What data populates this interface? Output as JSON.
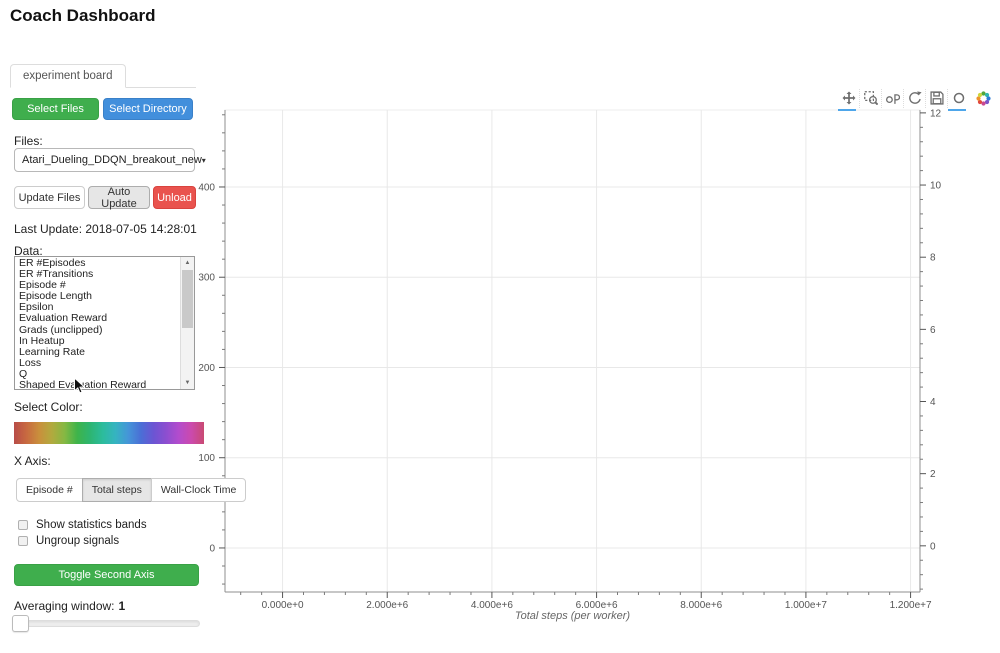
{
  "page": {
    "title": "Coach Dashboard"
  },
  "tabs": [
    {
      "label": "experiment board",
      "active": true
    }
  ],
  "file_buttons": {
    "select_files": "Select Files",
    "select_directory": "Select Directory"
  },
  "files": {
    "label": "Files:",
    "selected": "Atari_Dueling_DDQN_breakout_new"
  },
  "update_buttons": {
    "update_files": "Update Files",
    "auto_update": "Auto Update",
    "unload": "Unload"
  },
  "last_update": "Last Update: 2018-07-05 14:28:01",
  "data_list": {
    "label": "Data:",
    "items": [
      "ER #Episodes",
      "ER #Transitions",
      "Episode #",
      "Episode Length",
      "Epsilon",
      "Evaluation Reward",
      "Grads (unclipped)",
      "In Heatup",
      "Learning Rate",
      "Loss",
      "Q",
      "Shaped Evaluation Reward"
    ]
  },
  "color_picker": {
    "label": "Select Color:",
    "gradient": [
      "#b84c48",
      "#c86a40",
      "#c9903c",
      "#b1aa3e",
      "#85b843",
      "#3eb44a",
      "#2db571",
      "#2cbc9c",
      "#35b4c0",
      "#4596d8",
      "#4a6fd6",
      "#6b55d3",
      "#8c4ed0",
      "#b34ccd",
      "#cb4aad",
      "#c94a72"
    ]
  },
  "x_axis_selector": {
    "label": "X Axis:",
    "options": [
      {
        "label": "Episode #",
        "active": false
      },
      {
        "label": "Total steps",
        "active": true
      },
      {
        "label": "Wall-Clock Time",
        "active": false
      }
    ]
  },
  "checkboxes": [
    {
      "label": "Show statistics bands",
      "checked": false
    },
    {
      "label": "Ungroup signals",
      "checked": false
    }
  ],
  "toggle_second_axis": "Toggle Second Axis",
  "averaging": {
    "label": "Averaging window:",
    "value": "1"
  },
  "icons": {
    "caret_down": "▾",
    "arrow_up": "▲",
    "arrow_down": "▼"
  },
  "toolbar": {
    "tools": [
      {
        "name": "pan",
        "active": true
      },
      {
        "name": "box-zoom",
        "active": false
      },
      {
        "name": "wheel-zoom",
        "active": false
      },
      {
        "name": "reset",
        "active": false
      },
      {
        "name": "save",
        "active": false
      },
      {
        "name": "hover",
        "active": true
      }
    ],
    "logo": "bokeh"
  },
  "chart_data": {
    "type": "line",
    "title": "",
    "series": [],
    "grid": true,
    "x_axis": {
      "label": "Total steps (per worker)",
      "tick_labels": [
        "0.000e+0",
        "2.000e+6",
        "4.000e+6",
        "6.000e+6",
        "8.000e+6",
        "1.000e+7",
        "1.200e+7"
      ],
      "tick_values": [
        0,
        2000000,
        4000000,
        6000000,
        8000000,
        10000000,
        12000000
      ],
      "minor_step": 400000,
      "range": [
        -1100000,
        12180000
      ]
    },
    "y_axis_left": {
      "tick_values": [
        0,
        100,
        200,
        300,
        400
      ],
      "minor_step": 20,
      "range": [
        -48.8,
        485.3
      ]
    },
    "y_axis_right": {
      "tick_values": [
        0,
        2,
        4,
        6,
        8,
        10,
        12
      ],
      "minor_step": 0.4,
      "range": [
        -1.28,
        12.08
      ]
    }
  }
}
